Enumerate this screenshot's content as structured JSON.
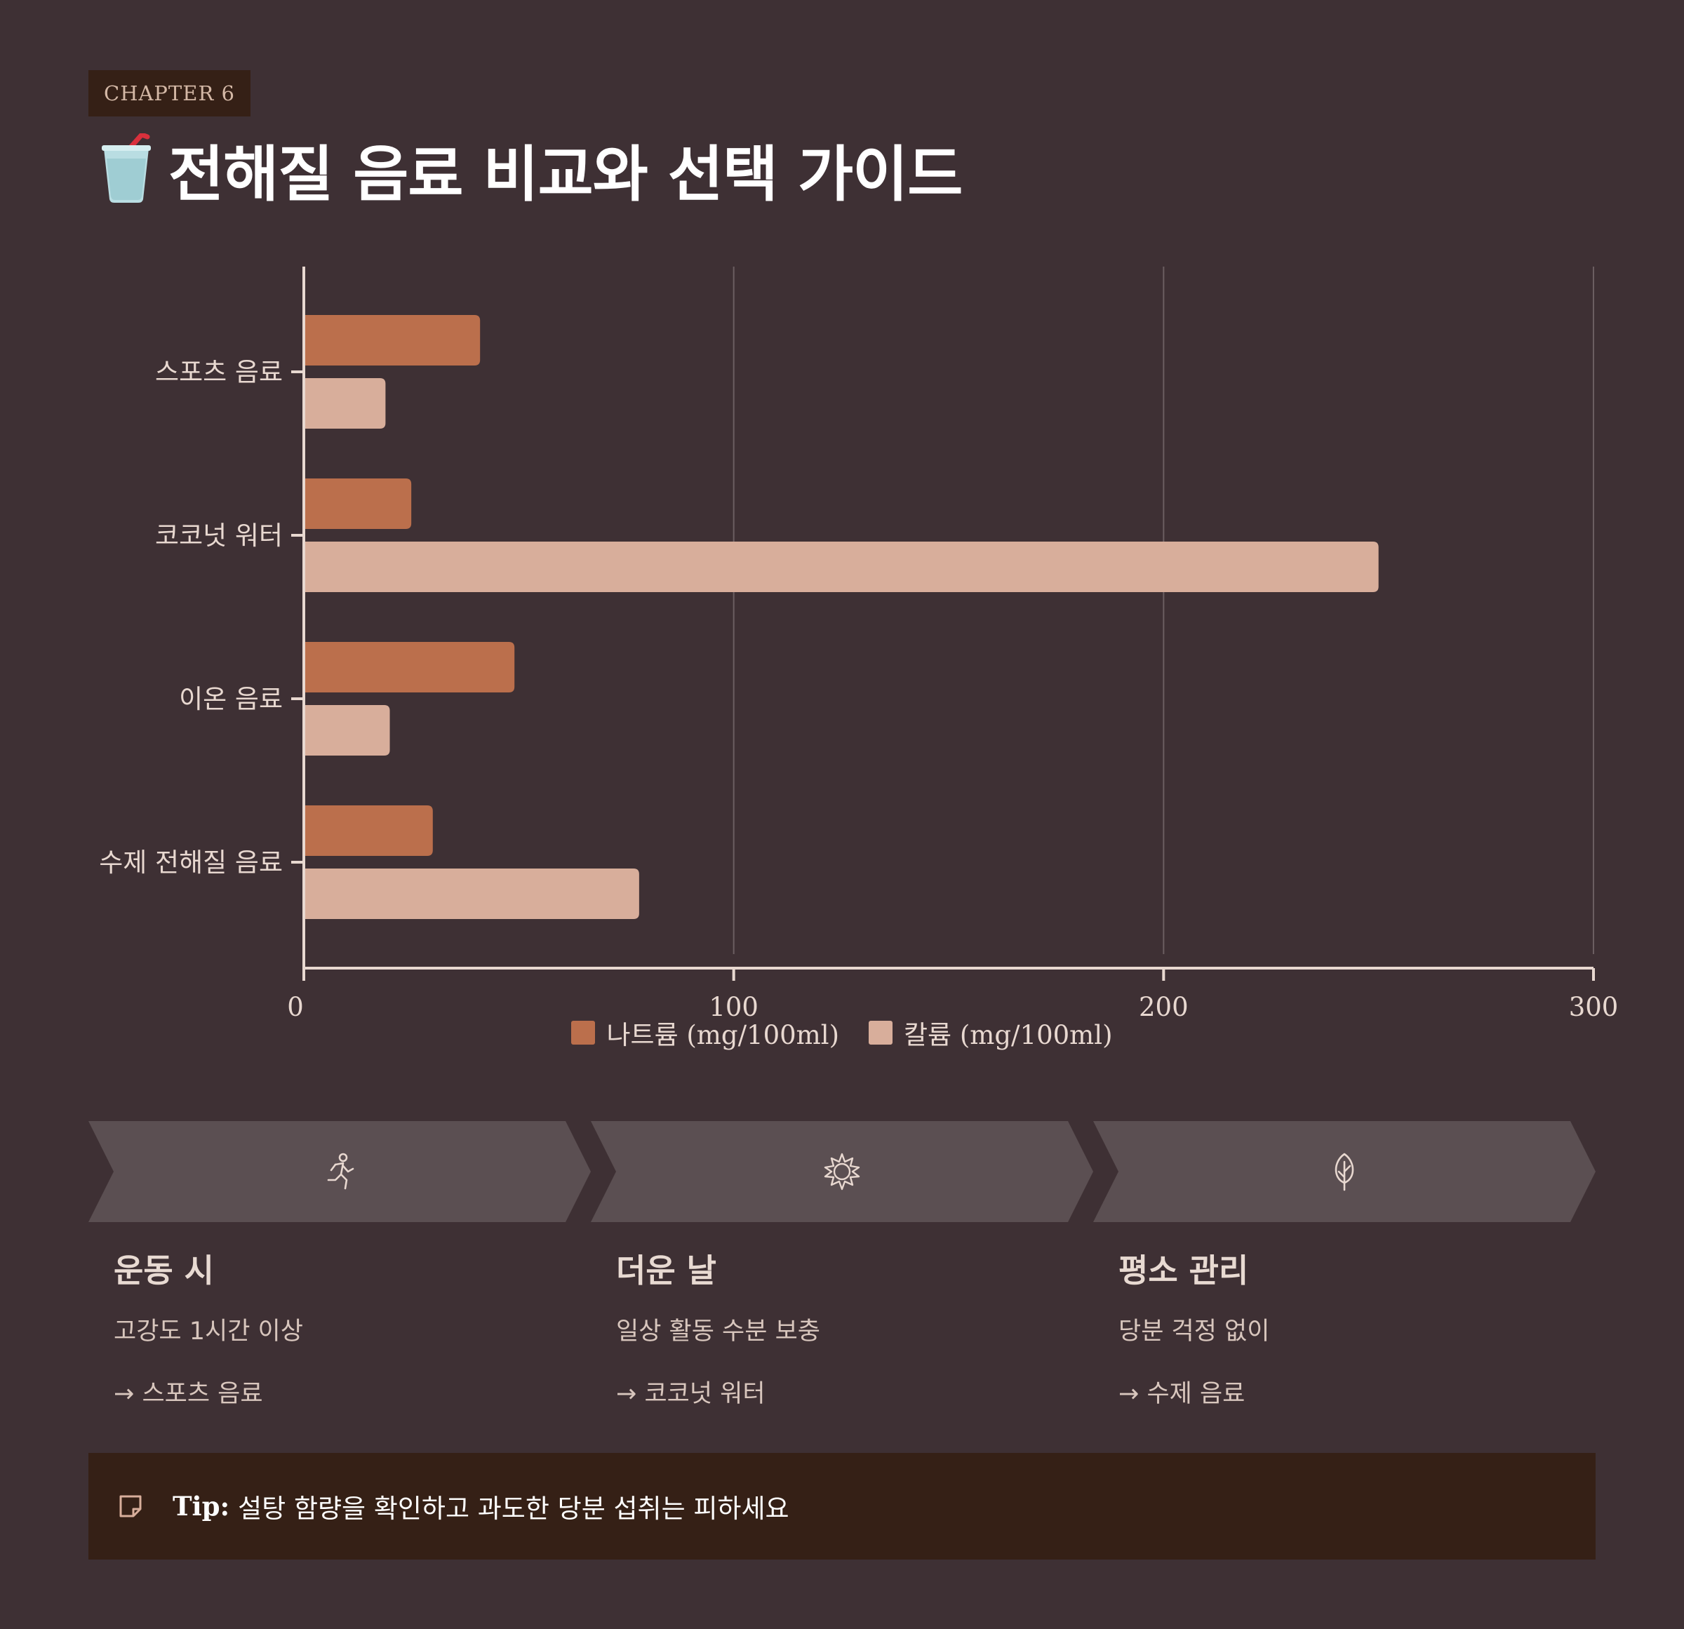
{
  "header": {
    "chapter": "CHAPTER 6",
    "title_icon": "cup-with-straw-icon",
    "title": "전해질 음료 비교와 선택 가이드"
  },
  "colors": {
    "background": "#3e3034",
    "sodium": "#bb6f4c",
    "potassium": "#d8ae9b",
    "panel": "#5b4f52",
    "tip_bg": "#352016"
  },
  "chart_data": {
    "type": "bar",
    "orientation": "horizontal",
    "categories": [
      "스포츠 음료",
      "코코넛 워터",
      "이온 음료",
      "수제 전해질 음료"
    ],
    "series": [
      {
        "name": "나트륨 (mg/100ml)",
        "values": [
          41,
          25,
          49,
          30
        ]
      },
      {
        "name": "칼륨 (mg/100ml)",
        "values": [
          19,
          250,
          20,
          78
        ]
      }
    ],
    "xlim": [
      0,
      300
    ],
    "xticks": [
      "0",
      "100",
      "200",
      "300"
    ],
    "grid": true,
    "legend_position": "bottom-center"
  },
  "steps": [
    {
      "icon": "running-person-icon",
      "title": "운동 시",
      "desc": "고강도 1시간 이상",
      "rec": "→ 스포츠 음료"
    },
    {
      "icon": "sun-icon",
      "title": "더운 날",
      "desc": "일상 활동 수분 보충",
      "rec": "→ 코코넛 워터"
    },
    {
      "icon": "leaf-icon",
      "title": "평소 관리",
      "desc": "당분 걱정 없이",
      "rec": "→ 수제 음료"
    }
  ],
  "tip": {
    "icon": "sticky-note-icon",
    "label": "Tip:",
    "text": "설탕 함량을 확인하고 과도한 당분 섭취는 피하세요"
  }
}
